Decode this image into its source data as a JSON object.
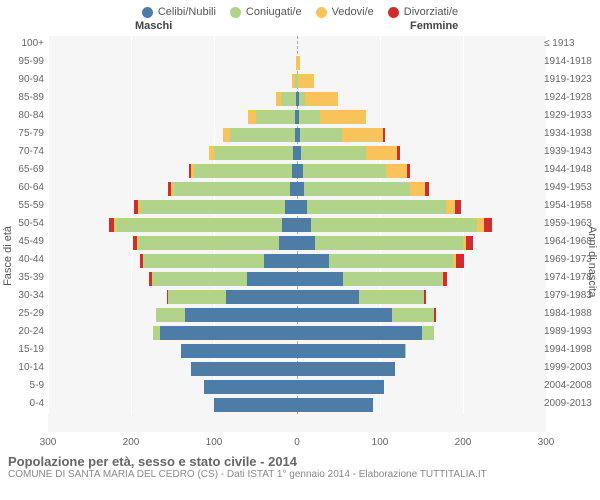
{
  "legend": [
    {
      "label": "Celibi/Nubili",
      "color": "#4d7ca6"
    },
    {
      "label": "Coniugati/e",
      "color": "#b2d38a"
    },
    {
      "label": "Vedovi/e",
      "color": "#f7c35a"
    },
    {
      "label": "Divorziati/e",
      "color": "#cf2e2e"
    }
  ],
  "headers": {
    "male": "Maschi",
    "female": "Femmine"
  },
  "axis": {
    "left_title": "Fasce di età",
    "right_title": "Anni di nascita",
    "xmax": 300,
    "xticks": [
      300,
      200,
      100,
      0,
      100,
      200,
      300
    ]
  },
  "footer": {
    "title": "Popolazione per età, sesso e stato civile - 2014",
    "subtitle": "COMUNE DI SANTA MARIA DEL CEDRO (CS) - Dati ISTAT 1° gennaio 2014 - Elaborazione TUTTITALIA.IT"
  },
  "colors": {
    "single": "#4d7ca6",
    "married": "#b2d38a",
    "widowed": "#f7c35a",
    "divorced": "#cf2e2e",
    "bg": "#f6f6f6"
  },
  "rows": [
    {
      "age": "100+",
      "birth": "≤ 1913",
      "m": [
        0,
        0,
        0,
        0
      ],
      "f": [
        0,
        0,
        0,
        0
      ]
    },
    {
      "age": "95-99",
      "birth": "1914-1918",
      "m": [
        0,
        0,
        1,
        0
      ],
      "f": [
        0,
        0,
        4,
        0
      ]
    },
    {
      "age": "90-94",
      "birth": "1919-1923",
      "m": [
        0,
        2,
        4,
        0
      ],
      "f": [
        0,
        1,
        20,
        0
      ]
    },
    {
      "age": "85-89",
      "birth": "1924-1928",
      "m": [
        1,
        18,
        6,
        0
      ],
      "f": [
        2,
        8,
        40,
        0
      ]
    },
    {
      "age": "80-84",
      "birth": "1929-1933",
      "m": [
        2,
        48,
        9,
        0
      ],
      "f": [
        3,
        25,
        55,
        0
      ]
    },
    {
      "age": "75-79",
      "birth": "1934-1938",
      "m": [
        3,
        78,
        8,
        0
      ],
      "f": [
        4,
        50,
        50,
        2
      ]
    },
    {
      "age": "70-74",
      "birth": "1939-1943",
      "m": [
        5,
        95,
        6,
        0
      ],
      "f": [
        5,
        78,
        38,
        3
      ]
    },
    {
      "age": "65-69",
      "birth": "1944-1948",
      "m": [
        6,
        118,
        4,
        2
      ],
      "f": [
        7,
        100,
        25,
        4
      ]
    },
    {
      "age": "60-64",
      "birth": "1949-1953",
      "m": [
        9,
        140,
        3,
        3
      ],
      "f": [
        8,
        128,
        18,
        5
      ]
    },
    {
      "age": "55-59",
      "birth": "1954-1958",
      "m": [
        14,
        175,
        2,
        5
      ],
      "f": [
        12,
        168,
        10,
        8
      ]
    },
    {
      "age": "50-54",
      "birth": "1959-1963",
      "m": [
        18,
        200,
        2,
        6
      ],
      "f": [
        17,
        200,
        8,
        10
      ]
    },
    {
      "age": "45-49",
      "birth": "1964-1968",
      "m": [
        22,
        170,
        1,
        5
      ],
      "f": [
        22,
        178,
        4,
        8
      ]
    },
    {
      "age": "40-44",
      "birth": "1969-1973",
      "m": [
        40,
        145,
        0,
        4
      ],
      "f": [
        38,
        150,
        3,
        10
      ]
    },
    {
      "age": "35-39",
      "birth": "1974-1978",
      "m": [
        60,
        115,
        0,
        3
      ],
      "f": [
        55,
        120,
        1,
        5
      ]
    },
    {
      "age": "30-34",
      "birth": "1979-1983",
      "m": [
        85,
        70,
        0,
        2
      ],
      "f": [
        75,
        78,
        0,
        3
      ]
    },
    {
      "age": "25-29",
      "birth": "1984-1988",
      "m": [
        135,
        35,
        0,
        0
      ],
      "f": [
        115,
        50,
        0,
        2
      ]
    },
    {
      "age": "20-24",
      "birth": "1989-1993",
      "m": [
        165,
        8,
        0,
        0
      ],
      "f": [
        150,
        15,
        0,
        0
      ]
    },
    {
      "age": "15-19",
      "birth": "1994-1998",
      "m": [
        140,
        0,
        0,
        0
      ],
      "f": [
        130,
        1,
        0,
        0
      ]
    },
    {
      "age": "10-14",
      "birth": "1999-2003",
      "m": [
        128,
        0,
        0,
        0
      ],
      "f": [
        118,
        0,
        0,
        0
      ]
    },
    {
      "age": "5-9",
      "birth": "2004-2008",
      "m": [
        112,
        0,
        0,
        0
      ],
      "f": [
        105,
        0,
        0,
        0
      ]
    },
    {
      "age": "0-4",
      "birth": "2009-2013",
      "m": [
        100,
        0,
        0,
        0
      ],
      "f": [
        92,
        0,
        0,
        0
      ]
    }
  ]
}
